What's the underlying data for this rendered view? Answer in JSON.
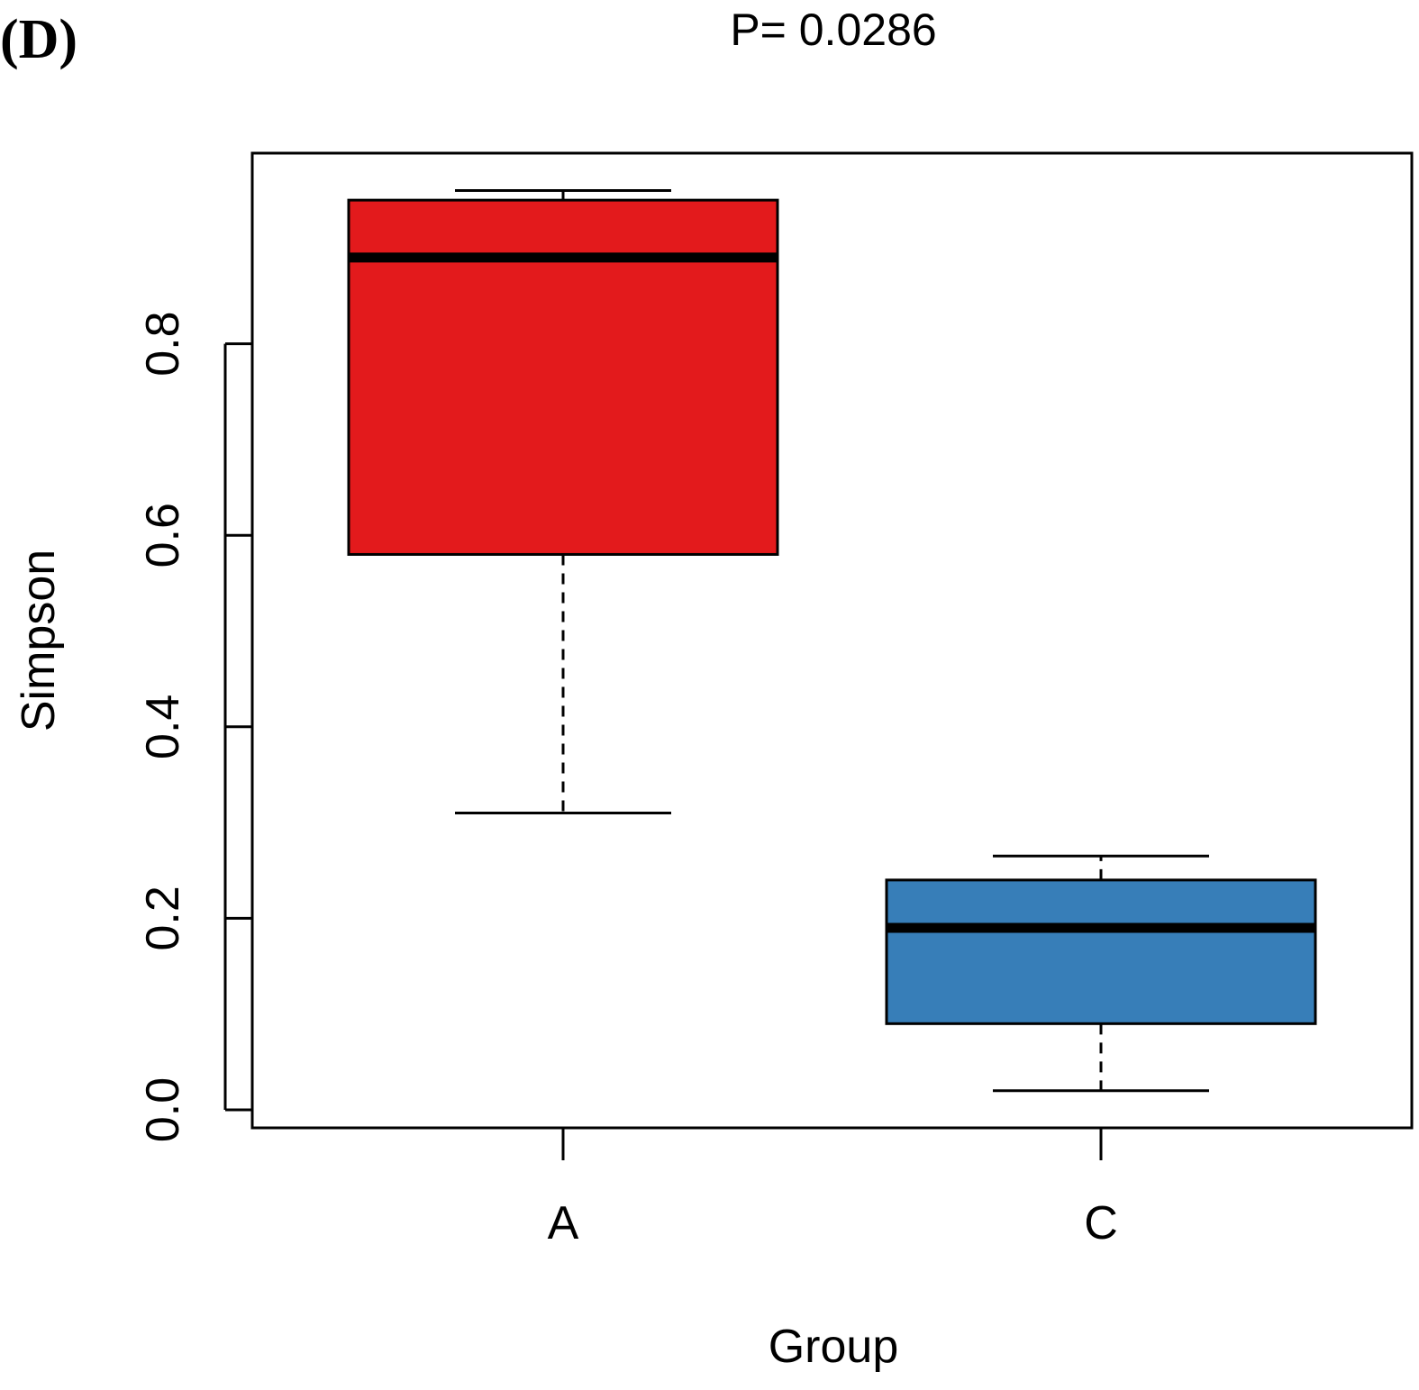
{
  "panel_label": "(D)",
  "chart_data": {
    "type": "boxplot",
    "title": "P= 0.0286",
    "xlabel": "Group",
    "ylabel": "Simpson",
    "ylim": [
      -0.03,
      0.99
    ],
    "yticks": [
      0.0,
      0.2,
      0.4,
      0.6,
      0.8
    ],
    "ytick_labels": [
      "0.0",
      "0.2",
      "0.4",
      "0.6",
      "0.8"
    ],
    "groups": [
      {
        "name": "A",
        "color": "#e31a1c",
        "whisker_low": 0.31,
        "q1": 0.58,
        "median": 0.89,
        "q3": 0.95,
        "whisker_high": 0.96
      },
      {
        "name": "C",
        "color": "#377eb8",
        "whisker_low": 0.02,
        "q1": 0.09,
        "median": 0.19,
        "q3": 0.24,
        "whisker_high": 0.265
      }
    ]
  }
}
